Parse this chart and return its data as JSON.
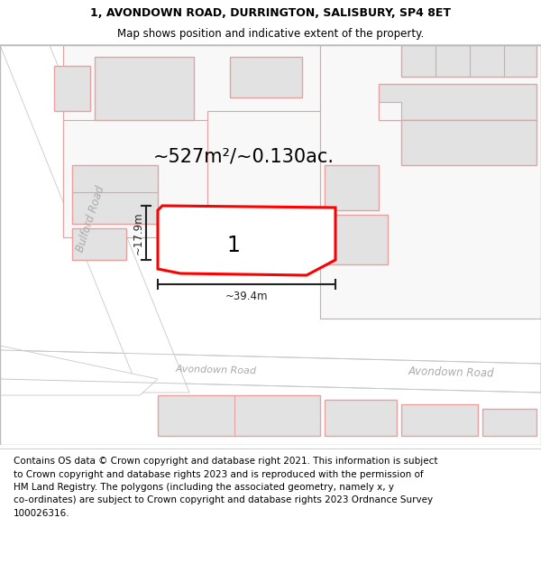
{
  "title_line1": "1, AVONDOWN ROAD, DURRINGTON, SALISBURY, SP4 8ET",
  "title_line2": "Map shows position and indicative extent of the property.",
  "footer_text": "Contains OS data © Crown copyright and database right 2021. This information is subject\nto Crown copyright and database rights 2023 and is reproduced with the permission of\nHM Land Registry. The polygons (including the associated geometry, namely x, y\nco-ordinates) are subject to Crown copyright and database rights 2023 Ordnance Survey\n100026316.",
  "area_label": "~527m²/~0.130ac.",
  "property_number": "1",
  "width_label": "~39.4m",
  "height_label": "~17.9m",
  "road_label_left": "Avondown Road",
  "road_label_right": "Avondown Road",
  "side_road_label": "Bulford Road",
  "map_bg": "#f7f7f7",
  "road_fill": "#ffffff",
  "road_edge": "#c8c8c8",
  "building_fill": "#e2e2e2",
  "building_edge": "#e8a0a0",
  "property_fill": "#ffffff",
  "property_edge": "#ff0000",
  "dim_color": "#222222",
  "road_text_color": "#aaaaaa",
  "title_bold": true,
  "title_fontsize": 9,
  "subtitle_fontsize": 8.5,
  "footer_fontsize": 7.5,
  "area_fontsize": 15,
  "num_fontsize": 17,
  "dim_fontsize": 8.5
}
